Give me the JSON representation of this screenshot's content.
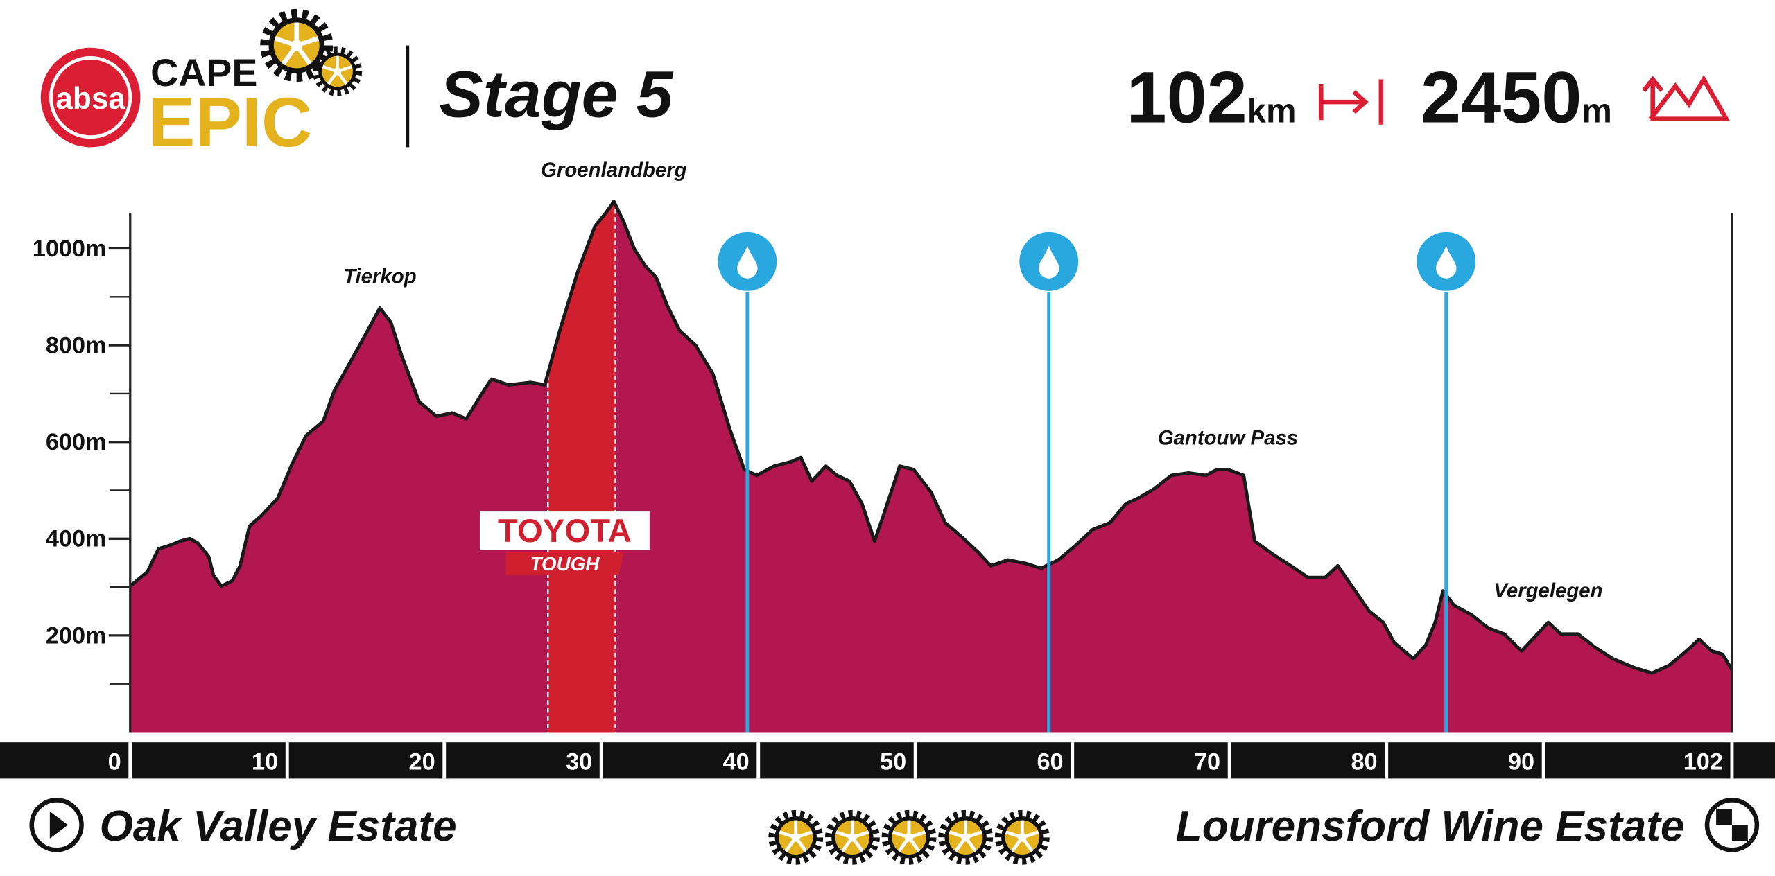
{
  "header": {
    "logo": {
      "badge": "absa",
      "line1": "CAPE",
      "line2": "EPIC"
    },
    "stage": "Stage 5",
    "distance": {
      "value": 102,
      "unit": "km"
    },
    "climbing": {
      "value": 2450,
      "unit": "m"
    }
  },
  "chart_data": {
    "type": "area",
    "x": [
      0,
      1.1,
      1.8,
      2.5,
      3.2,
      3.8,
      4.3,
      5.0,
      5.3,
      5.8,
      6.5,
      7.0,
      7.6,
      8.4,
      9.4,
      10.3,
      11.2,
      12.3,
      13.0,
      14.1,
      15.0,
      15.9,
      16.6,
      17.3,
      18.4,
      19.5,
      20.5,
      21.4,
      22.3,
      23.0,
      24.1,
      25.5,
      26.4,
      27.4,
      28.5,
      29.6,
      30.3,
      30.8,
      31.4,
      32.1,
      32.8,
      33.5,
      34.2,
      35.0,
      36.0,
      37.1,
      38.2,
      39.1,
      39.9,
      41.0,
      42.1,
      42.7,
      43.4,
      44.3,
      45.0,
      45.8,
      46.6,
      47.4,
      47.9,
      49.0,
      49.9,
      51.0,
      51.9,
      53.0,
      54.0,
      54.8,
      55.9,
      57.0,
      58.0,
      59.1,
      60.2,
      61.3,
      62.4,
      63.4,
      64.2,
      65.2,
      66.3,
      67.4,
      68.5,
      69.2,
      69.9,
      70.9,
      71.6,
      72.8,
      73.9,
      75.0,
      76.1,
      76.9,
      77.9,
      78.9,
      79.8,
      80.5,
      81.7,
      82.5,
      83.1,
      83.6,
      84.3,
      85.4,
      86.5,
      87.5,
      88.6,
      89.3,
      90.3,
      91.1,
      92.2,
      93.3,
      94.4,
      95.8,
      96.9,
      98.0,
      99.1,
      99.9,
      100.7,
      101.4,
      102
    ],
    "values": [
      302,
      332,
      379,
      386,
      395,
      400,
      391,
      363,
      325,
      302,
      313,
      344,
      426,
      449,
      484,
      554,
      613,
      643,
      706,
      770,
      823,
      877,
      847,
      777,
      683,
      653,
      660,
      648,
      695,
      730,
      718,
      723,
      718,
      835,
      952,
      1046,
      1074,
      1097,
      1057,
      999,
      964,
      940,
      882,
      830,
      800,
      741,
      625,
      543,
      531,
      550,
      559,
      568,
      519,
      550,
      531,
      519,
      472,
      395,
      442,
      550,
      543,
      496,
      433,
      402,
      372,
      344,
      356,
      349,
      339,
      356,
      386,
      419,
      433,
      472,
      484,
      503,
      531,
      536,
      531,
      543,
      543,
      531,
      395,
      367,
      344,
      320,
      320,
      344,
      297,
      250,
      227,
      185,
      152,
      180,
      227,
      292,
      262,
      243,
      215,
      203,
      168,
      192,
      227,
      203,
      203,
      175,
      152,
      133,
      122,
      138,
      168,
      192,
      168,
      161,
      129
    ],
    "color": "#b3174f",
    "line_color": "#1a1a1a",
    "xlim": [
      0,
      102
    ],
    "xticks": [
      0,
      10,
      20,
      30,
      40,
      50,
      60,
      70,
      80,
      90,
      102
    ],
    "ylim": [
      0,
      1100
    ],
    "yticks": [
      {
        "value": 200,
        "label": "200m"
      },
      {
        "value": 400,
        "label": "400m"
      },
      {
        "value": 600,
        "label": "600m"
      },
      {
        "value": 800,
        "label": "800m"
      },
      {
        "value": 1000,
        "label": "1000m"
      }
    ],
    "y_minor_ticks": [
      100,
      300,
      500,
      700,
      900
    ],
    "peaks": [
      {
        "name": "Tierkop",
        "x": 15.9,
        "y": 877
      },
      {
        "name": "Groenlandberg",
        "x": 30.8,
        "y": 1097
      },
      {
        "name": "Gantouw Pass",
        "x": 69.9,
        "y": 543
      },
      {
        "name": "Vergelegen",
        "x": 90.3,
        "y": 227
      }
    ],
    "water_points": {
      "color": "#29a8e0",
      "x": [
        39.3,
        58.5,
        83.8
      ]
    },
    "segment": {
      "label": "TOYOTA",
      "sublabel": "TOUGH",
      "start": 26.6,
      "end": 30.9,
      "color": "#d0202f"
    }
  },
  "footer": {
    "start": "Oak Valley Estate",
    "finish": "Lourensford Wine Estate",
    "difficulty": 5
  }
}
